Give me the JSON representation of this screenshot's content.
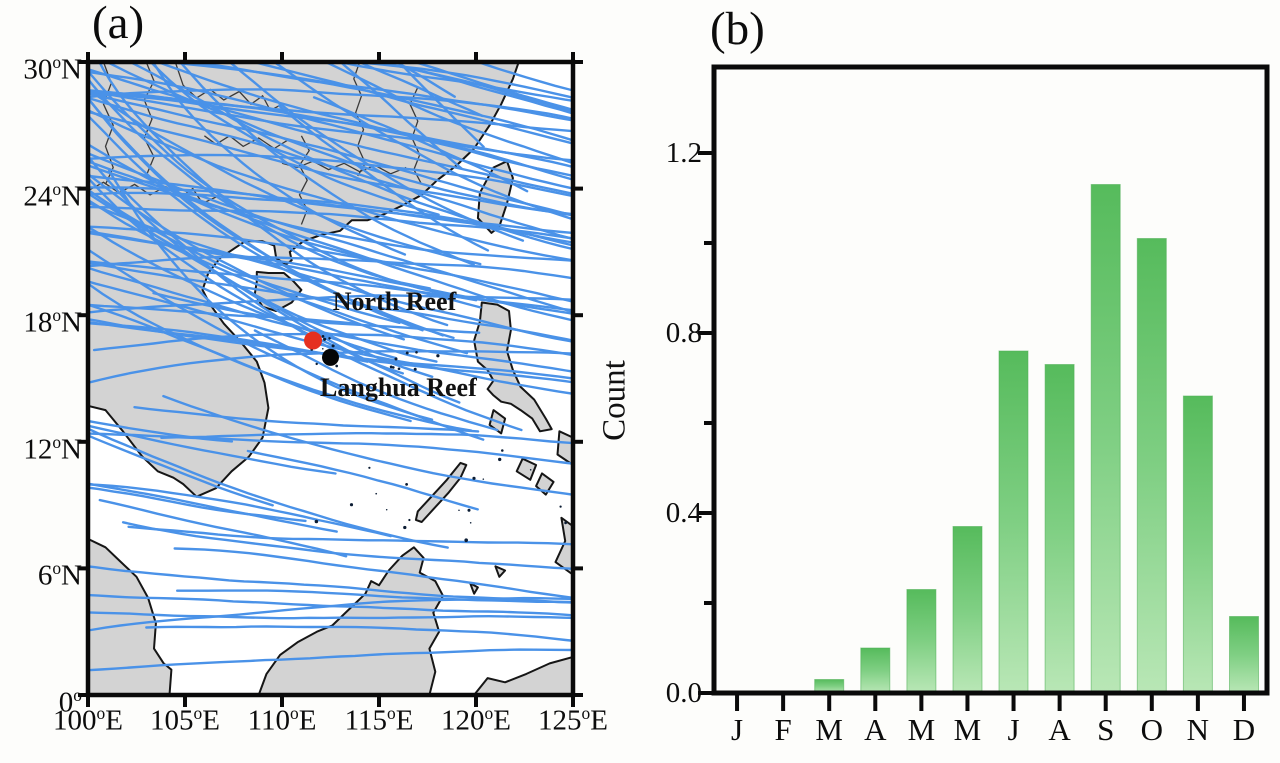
{
  "figure": {
    "panel_a_label": "(a)",
    "panel_b_label": "(b)"
  },
  "map": {
    "extent": {
      "lon_min": 100,
      "lon_max": 125,
      "lat_min": 0,
      "lat_max": 30
    },
    "lon_ticks": [
      {
        "deg": "100",
        "dir": "E",
        "value": 100
      },
      {
        "deg": "105",
        "dir": "E",
        "value": 105
      },
      {
        "deg": "110",
        "dir": "E",
        "value": 110
      },
      {
        "deg": "115",
        "dir": "E",
        "value": 115
      },
      {
        "deg": "120",
        "dir": "E",
        "value": 120
      },
      {
        "deg": "125",
        "dir": "E",
        "value": 125
      }
    ],
    "lat_ticks": [
      {
        "deg": "30",
        "dir": "N",
        "value": 30
      },
      {
        "deg": "24",
        "dir": "N",
        "value": 24
      },
      {
        "deg": "18",
        "dir": "N",
        "value": 18
      },
      {
        "deg": "12",
        "dir": "N",
        "value": 12
      },
      {
        "deg": "6",
        "dir": "N",
        "value": 6
      },
      {
        "deg": "0",
        "dir": "",
        "value": 0
      }
    ],
    "markers": [
      {
        "label": "North Reef",
        "marker_lon": 111.6,
        "marker_lat": 16.8,
        "color": "#e53020",
        "radius": 9,
        "label_center_lon": 115.8,
        "label_center_lat": 18.55
      },
      {
        "label": "Langhua Reef",
        "marker_lon": 112.5,
        "marker_lat": 16.0,
        "color": "#050505",
        "radius": 8.5,
        "label_center_lon": 116.0,
        "label_center_lat": 14.45
      }
    ],
    "colors": {
      "land": "#d3d3d3",
      "coast": "#161616",
      "border": "#3a3a3a",
      "sea": "#ffffff",
      "frame": "#0a0a0a"
    },
    "tracks": {
      "description": "historical typhoon track polylines",
      "count": 105,
      "seed": 11,
      "color": "#4a92e8",
      "width": 2.4
    },
    "land": [
      [
        [
          100,
          30
        ],
        [
          122.2,
          30
        ],
        [
          121.9,
          29.2
        ],
        [
          121.3,
          28.0
        ],
        [
          120.7,
          27.0
        ],
        [
          119.9,
          25.9
        ],
        [
          119.0,
          25.1
        ],
        [
          118.0,
          24.4
        ],
        [
          117.2,
          23.7
        ],
        [
          116.2,
          23.2
        ],
        [
          115.3,
          22.8
        ],
        [
          114.4,
          22.5
        ],
        [
          113.6,
          22.5
        ],
        [
          113.0,
          22.0
        ],
        [
          112.0,
          21.8
        ],
        [
          111.1,
          21.5
        ],
        [
          110.4,
          21.0
        ],
        [
          110.5,
          20.6
        ],
        [
          110.2,
          20.4
        ],
        [
          109.7,
          20.7
        ],
        [
          109.6,
          21.3
        ],
        [
          109.0,
          21.5
        ],
        [
          108.1,
          21.5
        ],
        [
          107.6,
          21.2
        ],
        [
          106.8,
          20.7
        ],
        [
          106.2,
          20.0
        ],
        [
          105.9,
          19.2
        ],
        [
          106.3,
          18.5
        ],
        [
          107.0,
          17.6
        ],
        [
          107.9,
          16.7
        ],
        [
          108.7,
          15.8
        ],
        [
          109.1,
          14.8
        ],
        [
          109.3,
          13.6
        ],
        [
          109.0,
          12.2
        ],
        [
          108.3,
          11.3
        ],
        [
          107.4,
          10.6
        ],
        [
          106.6,
          9.8
        ],
        [
          105.6,
          9.4
        ],
        [
          104.9,
          10.0
        ],
        [
          104.4,
          10.3
        ],
        [
          103.6,
          10.6
        ],
        [
          102.8,
          11.3
        ],
        [
          101.8,
          12.5
        ],
        [
          100.9,
          13.5
        ],
        [
          100,
          13.7
        ]
      ],
      [
        [
          108.7,
          20.05
        ],
        [
          109.3,
          20.0
        ],
        [
          110.1,
          20.0
        ],
        [
          110.6,
          19.6
        ],
        [
          111.0,
          19.2
        ],
        [
          110.5,
          18.6
        ],
        [
          109.7,
          18.2
        ],
        [
          109.0,
          18.4
        ],
        [
          108.6,
          19.0
        ],
        [
          108.7,
          19.6
        ]
      ],
      [
        [
          120.1,
          22.6
        ],
        [
          120.8,
          21.9
        ],
        [
          121.2,
          22.2
        ],
        [
          121.6,
          23.3
        ],
        [
          121.9,
          24.5
        ],
        [
          121.6,
          25.3
        ],
        [
          120.9,
          25.0
        ],
        [
          120.2,
          23.8
        ]
      ],
      [
        [
          100,
          7.4
        ],
        [
          100.9,
          7.0
        ],
        [
          101.7,
          6.3
        ],
        [
          102.5,
          5.6
        ],
        [
          103.1,
          4.6
        ],
        [
          103.5,
          3.4
        ],
        [
          103.4,
          2.2
        ],
        [
          103.9,
          1.5
        ],
        [
          104.3,
          1.2
        ],
        [
          104.2,
          0
        ],
        [
          100,
          0
        ]
      ],
      [
        [
          108.8,
          0
        ],
        [
          109.2,
          1.0
        ],
        [
          109.9,
          1.9
        ],
        [
          110.8,
          2.5
        ],
        [
          111.8,
          3.0
        ],
        [
          112.6,
          3.3
        ],
        [
          113.5,
          4.1
        ],
        [
          114.3,
          4.8
        ],
        [
          114.6,
          5.4
        ],
        [
          115.0,
          5.2
        ],
        [
          115.5,
          5.9
        ],
        [
          116.2,
          6.6
        ],
        [
          116.8,
          7.0
        ],
        [
          117.3,
          6.5
        ],
        [
          117.1,
          5.8
        ],
        [
          117.9,
          5.4
        ],
        [
          118.3,
          4.7
        ],
        [
          117.8,
          3.9
        ],
        [
          118.1,
          3.0
        ],
        [
          117.6,
          2.2
        ],
        [
          117.9,
          1.1
        ],
        [
          117.6,
          0
        ]
      ],
      [
        [
          117.2,
          8.2
        ],
        [
          117.8,
          8.8
        ],
        [
          118.6,
          9.6
        ],
        [
          119.2,
          10.3
        ],
        [
          119.5,
          10.9
        ],
        [
          119.2,
          11.0
        ],
        [
          118.5,
          10.2
        ],
        [
          117.7,
          9.4
        ],
        [
          117.0,
          8.7
        ],
        [
          116.9,
          8.3
        ]
      ],
      [
        [
          120.3,
          18.6
        ],
        [
          121.1,
          18.5
        ],
        [
          121.7,
          18.2
        ],
        [
          121.8,
          17.3
        ],
        [
          121.6,
          16.3
        ],
        [
          121.9,
          15.4
        ],
        [
          122.3,
          14.6
        ],
        [
          123.0,
          14.0
        ],
        [
          123.6,
          13.1
        ],
        [
          123.9,
          12.6
        ],
        [
          123.3,
          12.5
        ],
        [
          122.9,
          13.1
        ],
        [
          122.3,
          13.5
        ],
        [
          121.8,
          13.8
        ],
        [
          121.3,
          13.9
        ],
        [
          120.9,
          14.2
        ],
        [
          120.6,
          14.5
        ],
        [
          120.9,
          14.9
        ],
        [
          120.6,
          15.4
        ],
        [
          120.1,
          15.8
        ],
        [
          119.9,
          16.8
        ],
        [
          120.2,
          17.7
        ]
      ],
      [
        [
          120.9,
          13.5
        ],
        [
          121.5,
          13.1
        ],
        [
          121.3,
          12.4
        ],
        [
          120.7,
          12.8
        ]
      ],
      [
        [
          124.3,
          12.5
        ],
        [
          125,
          12.2
        ],
        [
          125,
          10.9
        ],
        [
          124.2,
          11.4
        ]
      ],
      [
        [
          122.4,
          11.2
        ],
        [
          123.1,
          10.9
        ],
        [
          122.8,
          10.2
        ],
        [
          122.1,
          10.6
        ]
      ],
      [
        [
          123.4,
          10.5
        ],
        [
          124.0,
          10.1
        ],
        [
          123.6,
          9.5
        ],
        [
          123.1,
          9.9
        ]
      ],
      [
        [
          124.4,
          8.4
        ],
        [
          125,
          8.0
        ],
        [
          125,
          5.7
        ],
        [
          124.1,
          6.3
        ],
        [
          124.6,
          7.3
        ]
      ],
      [
        [
          119.7,
          5.3
        ],
        [
          120.1,
          5.1
        ],
        [
          119.9,
          4.8
        ]
      ],
      [
        [
          121.0,
          6.1
        ],
        [
          121.5,
          5.9
        ],
        [
          121.2,
          5.6
        ]
      ],
      [
        [
          119.9,
          0
        ],
        [
          120.6,
          0.8
        ],
        [
          121.5,
          0.6
        ],
        [
          122.6,
          1.0
        ],
        [
          123.8,
          1.5
        ],
        [
          125,
          1.8
        ],
        [
          125,
          0
        ]
      ]
    ],
    "borders": [
      [
        [
          100,
          23.9
        ],
        [
          100.8,
          24.3
        ],
        [
          101.6,
          23.8
        ],
        [
          102.4,
          24.2
        ],
        [
          103.2,
          23.7
        ],
        [
          104.0,
          24.1
        ],
        [
          104.8,
          23.6
        ],
        [
          105.4,
          24.0
        ],
        [
          105.9,
          23.3
        ],
        [
          106.6,
          23.6
        ]
      ],
      [
        [
          104.5,
          30
        ],
        [
          104.9,
          28.9
        ],
        [
          105.6,
          28.3
        ],
        [
          106.3,
          28.7
        ],
        [
          107.0,
          28.2
        ],
        [
          107.8,
          28.6
        ],
        [
          108.4,
          28.0
        ],
        [
          109.0,
          28.4
        ],
        [
          109.4,
          27.7
        ],
        [
          110.0,
          28.0
        ]
      ],
      [
        [
          111.0,
          26.5
        ],
        [
          111.4,
          25.8
        ],
        [
          110.9,
          25.1
        ],
        [
          111.3,
          24.4
        ],
        [
          110.9,
          23.7
        ],
        [
          111.3,
          23.0
        ],
        [
          111.0,
          22.3
        ]
      ],
      [
        [
          114.0,
          30
        ],
        [
          113.7,
          29.2
        ],
        [
          114.1,
          28.4
        ],
        [
          113.8,
          27.6
        ],
        [
          114.2,
          26.8
        ],
        [
          113.9,
          26.0
        ],
        [
          114.3,
          25.2
        ],
        [
          113.9,
          24.6
        ]
      ],
      [
        [
          117.0,
          28.8
        ],
        [
          116.6,
          28.0
        ],
        [
          117.0,
          27.2
        ],
        [
          116.7,
          26.4
        ],
        [
          117.1,
          25.6
        ],
        [
          116.8,
          24.9
        ],
        [
          117.2,
          24.2
        ]
      ],
      [
        [
          110.0,
          25.2
        ],
        [
          110.8,
          25.0
        ],
        [
          111.6,
          25.3
        ],
        [
          112.4,
          24.9
        ],
        [
          113.2,
          25.2
        ],
        [
          114.0,
          24.8
        ],
        [
          114.8,
          25.1
        ],
        [
          115.6,
          24.7
        ],
        [
          116.4,
          25.0
        ]
      ],
      [
        [
          100.8,
          30
        ],
        [
          101.2,
          29.0
        ],
        [
          100.8,
          28.0
        ],
        [
          101.3,
          27.0
        ],
        [
          100.9,
          26.0
        ],
        [
          101.3,
          25.0
        ],
        [
          100.9,
          24.2
        ]
      ],
      [
        [
          103.0,
          30
        ],
        [
          103.4,
          29.1
        ],
        [
          102.9,
          28.2
        ],
        [
          103.3,
          27.3
        ],
        [
          102.9,
          26.4
        ],
        [
          103.4,
          25.5
        ],
        [
          103.0,
          24.6
        ]
      ],
      [
        [
          106.0,
          26.5
        ],
        [
          106.6,
          26.1
        ],
        [
          107.3,
          26.5
        ],
        [
          108.0,
          26.0
        ],
        [
          108.8,
          26.4
        ],
        [
          109.6,
          25.9
        ],
        [
          110.3,
          26.3
        ]
      ]
    ]
  },
  "chart_data": {
    "type": "bar",
    "categories": [
      "J",
      "F",
      "M",
      "A",
      "M",
      "M",
      "J",
      "A",
      "S",
      "O",
      "N",
      "D"
    ],
    "values": [
      0,
      0,
      0.03,
      0.1,
      0.23,
      0.37,
      0.76,
      0.73,
      1.13,
      1.01,
      0.66,
      0.17
    ],
    "title": "",
    "xlabel": "",
    "ylabel": "Count",
    "ylim": [
      0,
      1.4
    ],
    "ytick_labels": [
      {
        "label": "0.0",
        "value": 0.0
      },
      {
        "label": "0.4",
        "value": 0.4
      },
      {
        "label": "0.8",
        "value": 0.8
      },
      {
        "label": "1.2",
        "value": 1.2
      }
    ],
    "yticks_minor": [
      0.2,
      0.6,
      1.0
    ],
    "grid": false,
    "legend_position": "none",
    "bar_color_top": "#56bb5c",
    "bar_color_mid": "#7fcf83",
    "bar_color_bottom": "#b9e7b6",
    "axis_color": "#0a0a0a"
  }
}
